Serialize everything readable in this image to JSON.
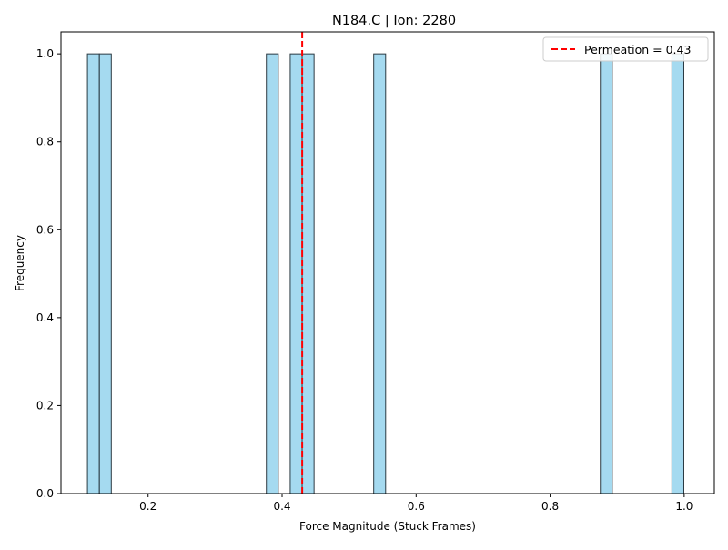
{
  "chart_data": {
    "type": "bar",
    "title": "N184.C | Ion: 2280",
    "xlabel": "Force Magnitude (Stuck Frames)",
    "ylabel": "Frequency",
    "xlim": [
      0.07,
      1.045
    ],
    "ylim": [
      0,
      1.05
    ],
    "xticks": [
      0.2,
      0.4,
      0.6,
      0.8,
      1.0
    ],
    "xtick_labels": [
      "0.2",
      "0.4",
      "0.6",
      "0.8",
      "1.0"
    ],
    "yticks": [
      0.0,
      0.2,
      0.4,
      0.6,
      0.8,
      1.0
    ],
    "ytick_labels": [
      "0.0",
      "0.2",
      "0.4",
      "0.6",
      "0.8",
      "1.0"
    ],
    "bin_width": 0.0178,
    "bins": [
      {
        "start": 0.1095,
        "value": 1
      },
      {
        "start": 0.1273,
        "value": 1
      },
      {
        "start": 0.3765,
        "value": 1
      },
      {
        "start": 0.4121,
        "value": 1
      },
      {
        "start": 0.4299,
        "value": 1
      },
      {
        "start": 0.5367,
        "value": 1
      },
      {
        "start": 0.8749,
        "value": 1
      },
      {
        "start": 0.9817,
        "value": 1
      }
    ],
    "bar_color": "#87CEEB",
    "bar_edge_color": "#2b3a42",
    "grid": false,
    "legend_position": "top-right",
    "reference_line": {
      "x": 0.43,
      "label": "Permeation = 0.43",
      "color": "#ff0000",
      "style": "dashed"
    }
  }
}
